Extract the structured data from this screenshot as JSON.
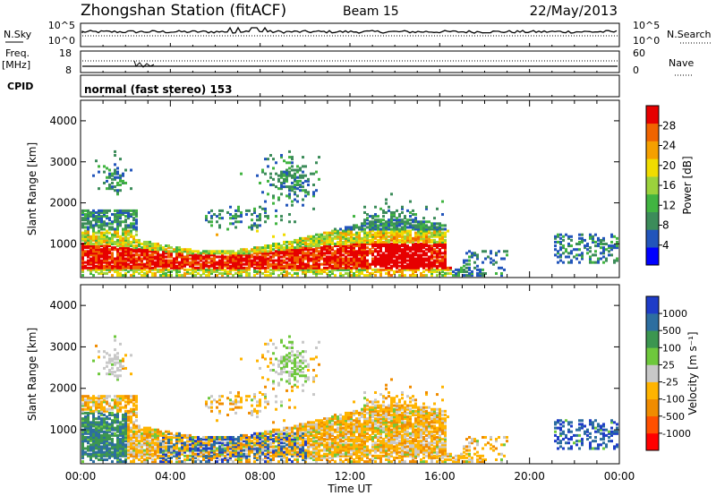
{
  "header": {
    "title": "Zhongshan Station (fitACF)",
    "beam": "Beam 15",
    "date": "22/May/2013"
  },
  "panels": {
    "nsky": {
      "left_label": "N.Sky",
      "right_label": "N.Search",
      "left_ticks": [
        "10^5",
        "10^0"
      ],
      "right_ticks": [
        "10^5",
        "10^0"
      ]
    },
    "freq": {
      "left_label": "Freq.",
      "left_unit": "[MHz]",
      "right_label": "Nave",
      "left_ticks": [
        "18",
        "8"
      ],
      "right_ticks": [
        "60",
        "0"
      ]
    },
    "cpid": {
      "label": "CPID",
      "text": "normal (fast stereo) 153"
    }
  },
  "colors": {
    "power": [
      "#0000ff",
      "#2255bb",
      "#3c8c5a",
      "#41b441",
      "#9bd23c",
      "#f0dc00",
      "#f5a000",
      "#f06400",
      "#e60000"
    ],
    "velocity": [
      "#ff0000",
      "#ff5000",
      "#f08c00",
      "#ffb400",
      "#c8c8c8",
      "#6ec83c",
      "#3c9650",
      "#2d6ea0",
      "#1e3cc8"
    ]
  },
  "chart_data": [
    {
      "type": "heatmap",
      "name": "power",
      "ylabel": "Slant Range [km]",
      "ylim": [
        180,
        4500
      ],
      "yticks": [
        "1000",
        "2000",
        "3000",
        "4000"
      ],
      "ytick_values": [
        1000,
        2000,
        3000,
        4000
      ],
      "x_ticks": [
        "00:00",
        "04:00",
        "08:00",
        "12:00",
        "16:00",
        "20:00",
        "00:00"
      ],
      "xlim_hours": [
        0,
        24
      ],
      "colorbar": {
        "label": "Power [dB]",
        "ticks": [
          "4",
          "8",
          "12",
          "16",
          "20",
          "24",
          "28"
        ],
        "tick_values": [
          4,
          8,
          12,
          16,
          20,
          24,
          28
        ],
        "range": [
          0,
          32
        ]
      }
    },
    {
      "type": "heatmap",
      "name": "velocity",
      "ylabel": "Slant Range [km]",
      "xlabel": "Time UT",
      "ylim": [
        180,
        4500
      ],
      "yticks": [
        "1000",
        "2000",
        "3000",
        "4000"
      ],
      "ytick_values": [
        1000,
        2000,
        3000,
        4000
      ],
      "x_ticks": [
        "00:00",
        "04:00",
        "08:00",
        "12:00",
        "16:00",
        "20:00",
        "00:00"
      ],
      "xlim_hours": [
        0,
        24
      ],
      "colorbar": {
        "label": "Velocity [m s⁻¹]",
        "ticks": [
          "1000",
          "500",
          "100",
          "25",
          "-25",
          "-100",
          "-500",
          "-1000"
        ]
      }
    }
  ]
}
